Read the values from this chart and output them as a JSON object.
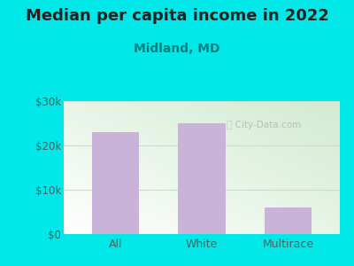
{
  "title": "Median per capita income in 2022",
  "subtitle": "Midland, MD",
  "categories": [
    "All",
    "White",
    "Multirace"
  ],
  "values": [
    23000,
    25000,
    6000
  ],
  "bar_color": "#c9b3d9",
  "background_color": "#00e8e8",
  "ylim": [
    0,
    30000
  ],
  "yticks": [
    0,
    10000,
    20000,
    30000
  ],
  "ytick_labels": [
    "$0",
    "$10k",
    "$20k",
    "$30k"
  ],
  "title_fontsize": 13,
  "subtitle_fontsize": 10,
  "title_color": "#222222",
  "subtitle_color": "#008080",
  "tick_color": "#446666",
  "grid_color": "#ccddcc",
  "watermark": "  City-Data.com"
}
